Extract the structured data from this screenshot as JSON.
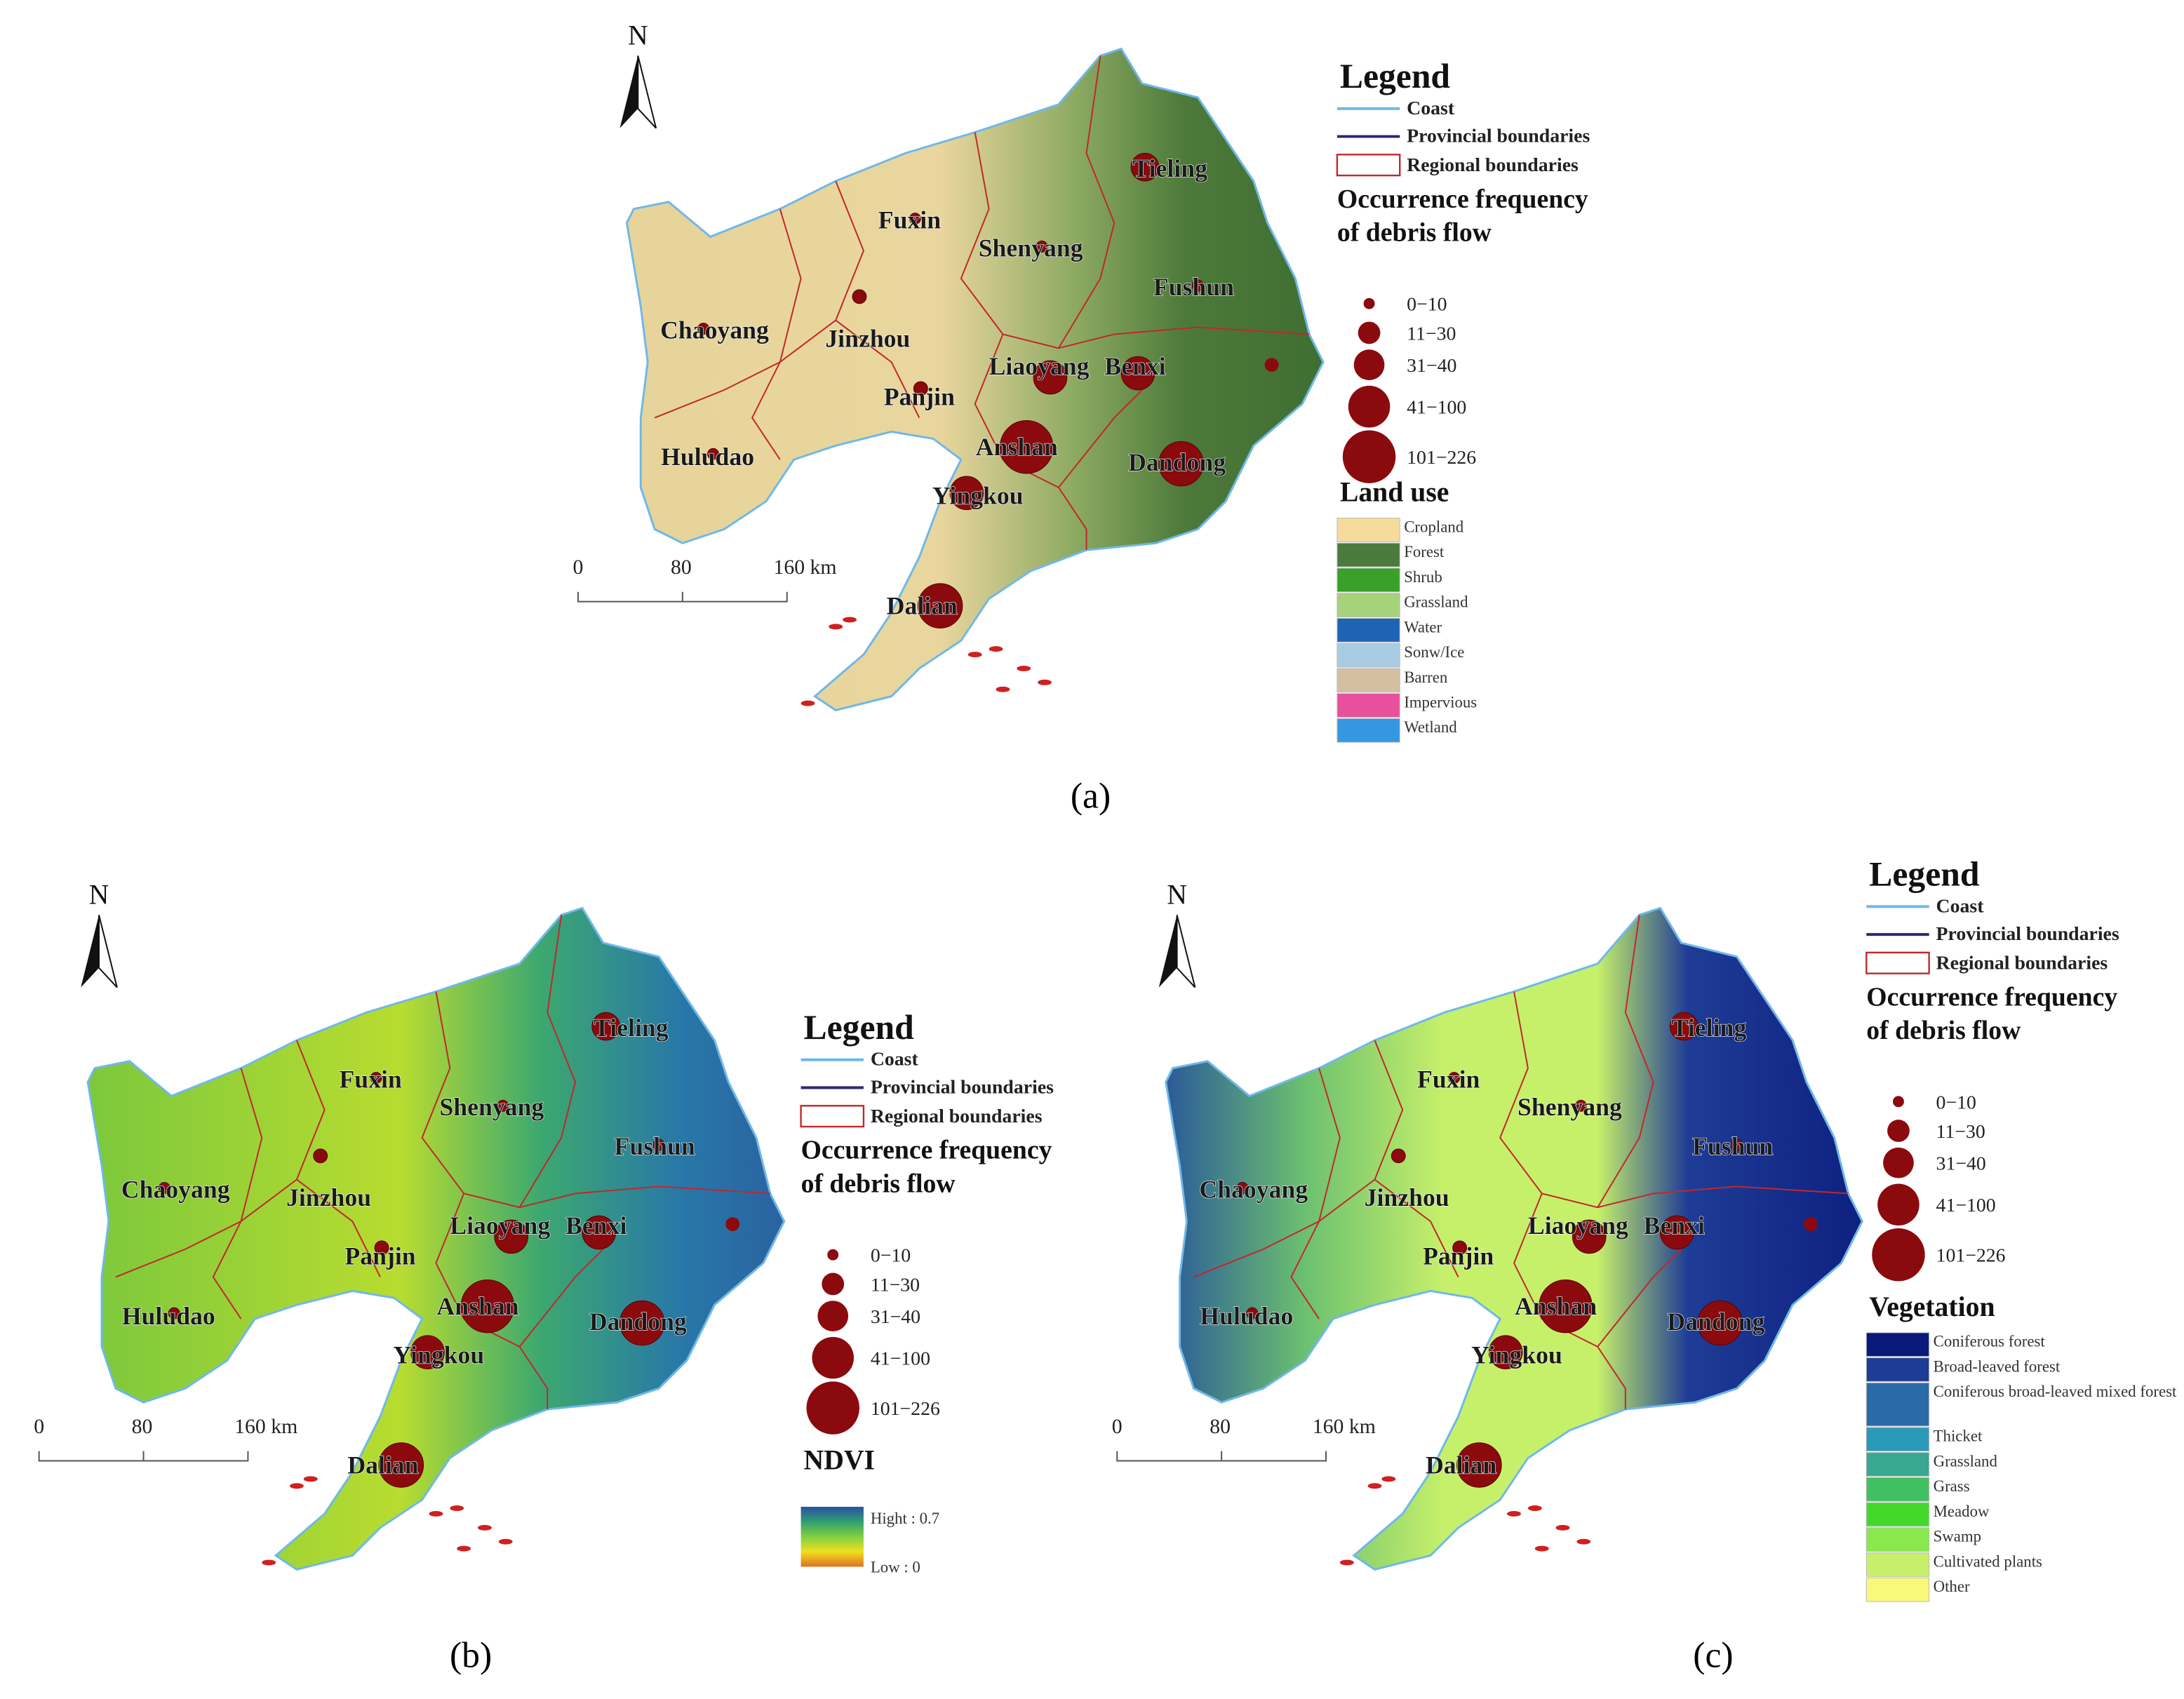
{
  "figure": {
    "panels": [
      {
        "label": "(a)",
        "compass": "N",
        "scale_labels": [
          "0",
          "80",
          "160 km"
        ],
        "cities": [
          "Tieling",
          "Fuxin",
          "Shenyang",
          "Fushun",
          "Chaoyang",
          "Jinzhou",
          "Liaoyang",
          "Benxi",
          "Panjin",
          "Anshan",
          "Dandong",
          "Huludao",
          "Yingkou",
          "Dalian"
        ],
        "legend": {
          "title": "Legend",
          "lines": [
            "Coast",
            "Provincial boundaries",
            "Regional boundaries"
          ],
          "frequency_title": "Occurrence frequency of debris flow",
          "frequency_classes": [
            "0−10",
            "11−30",
            "31−40",
            "41−100",
            "101−226"
          ],
          "layer_title": "Land use",
          "layer_items": [
            {
              "name": "Cropland",
              "color": "#f5dc9c"
            },
            {
              "name": "Forest",
              "color": "#4a7a3c"
            },
            {
              "name": "Shrub",
              "color": "#3aa02a"
            },
            {
              "name": "Grassland",
              "color": "#a6d27a"
            },
            {
              "name": "Water",
              "color": "#1f64b4"
            },
            {
              "name": "Sonw/Ice",
              "color": "#a8cce4"
            },
            {
              "name": "Barren",
              "color": "#d4c0a0"
            },
            {
              "name": "Impervious",
              "color": "#e8509c"
            },
            {
              "name": "Wetland",
              "color": "#3498e0"
            }
          ]
        }
      },
      {
        "label": "(b)",
        "compass": "N",
        "scale_labels": [
          "0",
          "80",
          "160 km"
        ],
        "cities": [
          "Tieling",
          "Fuxin",
          "Shenyang",
          "Fushun",
          "Chaoyang",
          "Jinzhou",
          "Liaoyang",
          "Benxi",
          "Panjin",
          "Anshan",
          "Dandong",
          "Huludao",
          "Yingkou",
          "Dalian"
        ],
        "legend": {
          "title": "Legend",
          "lines": [
            "Coast",
            "Provincial boundaries",
            "Regional boundaries"
          ],
          "frequency_title": "Occurrence frequency of debris flow",
          "frequency_classes": [
            "0−10",
            "11−30",
            "31−40",
            "41−100",
            "101−226"
          ],
          "layer_title": "NDVI",
          "ramp": {
            "high": "Hight : 0.7",
            "low": "Low : 0",
            "colors": [
              "#2850a0",
              "#30a070",
              "#80d040",
              "#f0e020",
              "#e07020"
            ]
          }
        }
      },
      {
        "label": "(c)",
        "compass": "N",
        "scale_labels": [
          "0",
          "80",
          "160 km"
        ],
        "cities": [
          "Tieling",
          "Fuxin",
          "Shenyang",
          "Fushun",
          "Chaoyang",
          "Jinzhou",
          "Liaoyang",
          "Benxi",
          "Panjin",
          "Anshan",
          "Dandong",
          "Huludao",
          "Yingkou",
          "Dalian"
        ],
        "legend": {
          "title": "Legend",
          "lines": [
            "Coast",
            "Provincial boundaries",
            "Regional boundaries"
          ],
          "frequency_title": "Occurrence frequency of debris flow",
          "frequency_classes": [
            "0−10",
            "11−30",
            "31−40",
            "41−100",
            "101−226"
          ],
          "layer_title": "Vegetation",
          "layer_items": [
            {
              "name": "Coniferous forest",
              "color": "#0a1a7a"
            },
            {
              "name": "Broad-leaved forest",
              "color": "#1e3c96"
            },
            {
              "name": "Coniferous broad-leaved mixed forest",
              "color": "#2a6aa8"
            },
            {
              "name": "Thicket",
              "color": "#2a9ab8"
            },
            {
              "name": "Grassland",
              "color": "#38a890"
            },
            {
              "name": "Grass",
              "color": "#40c060"
            },
            {
              "name": "Meadow",
              "color": "#44d82c"
            },
            {
              "name": "Swamp",
              "color": "#88e84c"
            },
            {
              "name": "Cultivated plants",
              "color": "#c6f06a"
            },
            {
              "name": "Other",
              "color": "#f8f87a"
            }
          ]
        }
      }
    ]
  }
}
